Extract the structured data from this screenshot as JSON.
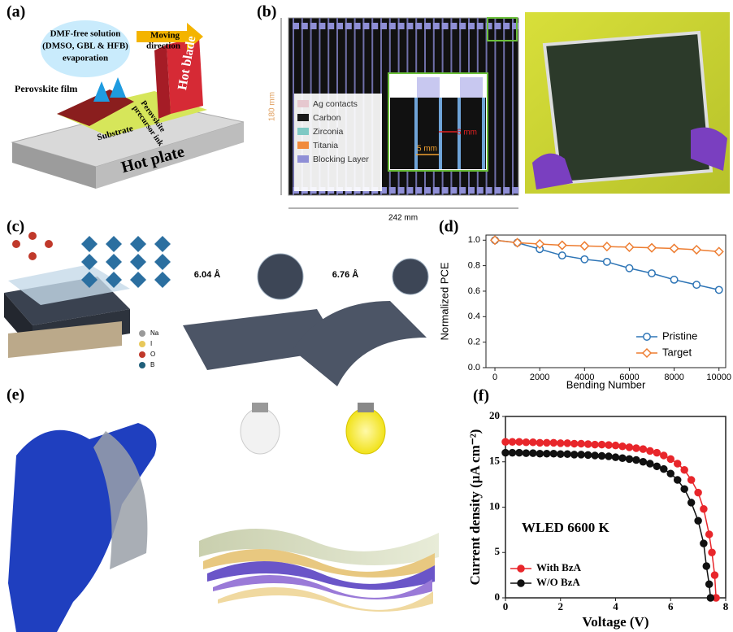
{
  "panels": {
    "a": {
      "label": "(a)",
      "solution": "DMF-free solution",
      "solvents": "(DMSO, GBL & HFB)",
      "evaporation": "evaporation",
      "moving": "Moving",
      "direction": "direction",
      "hot_blade": "Hot blade",
      "film": "Perovskite film",
      "ink_1": "Perovskite",
      "ink_2": "precursor ink",
      "substrate": "Substrate",
      "hot_plate": "Hot plate"
    },
    "b": {
      "label": "(b)",
      "height": "180 mm",
      "width": "242 mm",
      "legend": [
        "Ag contacts",
        "Carbon",
        "Zirconia",
        "Titania",
        "Blocking Layer"
      ],
      "legend_colors": [
        "#e6c8cf",
        "#1a1a1a",
        "#7fc9c4",
        "#f08a3c",
        "#8f8fd6"
      ],
      "gap": "6 mm",
      "stripe": "5 mm"
    },
    "c": {
      "label": "(c)",
      "dist_1": "6.04 Å",
      "dist_2": "6.76 Å",
      "elements": [
        "Na",
        "I",
        "O",
        "B"
      ],
      "element_colors": [
        "#9a9a9a",
        "#e8c85a",
        "#c0392b",
        "#1f5f7a"
      ]
    },
    "e": {
      "label": "(e)"
    }
  },
  "chart_data": [
    {
      "type": "line",
      "panel_label": "(d)",
      "xlabel": "Bending Number",
      "ylabel": "Normalized PCE",
      "x": [
        0,
        1000,
        2000,
        3000,
        4000,
        5000,
        6000,
        7000,
        8000,
        9000,
        10000
      ],
      "xlim": [
        -400,
        10300
      ],
      "xticks": [
        0,
        2000,
        4000,
        6000,
        8000,
        10000
      ],
      "ylim": [
        0,
        1.04
      ],
      "yticks": [
        {
          "value": 0,
          "label": "0.0"
        },
        0.2,
        0.4,
        0.6,
        0.8,
        {
          "value": 1,
          "label": "1.0"
        }
      ],
      "legend": "lower right",
      "filled_markers": false,
      "series": [
        {
          "name": "Pristine",
          "color": "#2e75b6",
          "marker": "circle",
          "values": [
            1.0,
            0.98,
            0.93,
            0.88,
            0.85,
            0.83,
            0.78,
            0.74,
            0.69,
            0.65,
            0.61
          ]
        },
        {
          "name": "Target",
          "color": "#ed7d31",
          "marker": "diamond",
          "values": [
            1.0,
            0.98,
            0.97,
            0.96,
            0.955,
            0.95,
            0.945,
            0.94,
            0.935,
            0.925,
            0.91
          ]
        }
      ]
    },
    {
      "type": "line",
      "panel_label": "(f)",
      "xlabel": "Voltage (V)",
      "ylabel": "Current density (μA cm⁻²)",
      "annotation": "WLED 6600 K",
      "xlim": [
        0,
        8
      ],
      "xticks": [
        0,
        2,
        4,
        6,
        8
      ],
      "ylim": [
        0,
        20
      ],
      "yticks": [
        0,
        5,
        10,
        15,
        20
      ],
      "legend": "lower left",
      "filled_markers": true,
      "series": [
        {
          "name": "With BzA",
          "color": "#e8262b",
          "marker": "circle",
          "x": [
            0,
            0.25,
            0.5,
            0.75,
            1,
            1.25,
            1.5,
            1.75,
            2,
            2.25,
            2.5,
            2.75,
            3,
            3.25,
            3.5,
            3.75,
            4,
            4.25,
            4.5,
            4.75,
            5,
            5.25,
            5.5,
            5.75,
            6,
            6.25,
            6.5,
            6.75,
            7,
            7.2,
            7.4,
            7.5,
            7.6,
            7.65
          ],
          "values": [
            17.2,
            17.2,
            17.2,
            17.15,
            17.15,
            17.1,
            17.1,
            17.1,
            17.05,
            17.05,
            17.0,
            17.0,
            16.95,
            16.9,
            16.9,
            16.85,
            16.8,
            16.7,
            16.6,
            16.5,
            16.4,
            16.2,
            16.0,
            15.7,
            15.3,
            14.8,
            14.1,
            13.0,
            11.6,
            9.8,
            7.0,
            5.0,
            2.5,
            0
          ]
        },
        {
          "name": "W/O BzA",
          "color": "#111111",
          "marker": "circle",
          "x": [
            0,
            0.25,
            0.5,
            0.75,
            1,
            1.25,
            1.5,
            1.75,
            2,
            2.25,
            2.5,
            2.75,
            3,
            3.25,
            3.5,
            3.75,
            4,
            4.25,
            4.5,
            4.75,
            5,
            5.25,
            5.5,
            5.75,
            6,
            6.25,
            6.5,
            6.75,
            7,
            7.2,
            7.3,
            7.4,
            7.45
          ],
          "values": [
            16.0,
            16.0,
            16.0,
            15.95,
            15.95,
            15.9,
            15.9,
            15.9,
            15.85,
            15.85,
            15.8,
            15.8,
            15.75,
            15.7,
            15.65,
            15.6,
            15.5,
            15.4,
            15.3,
            15.2,
            15.0,
            14.8,
            14.5,
            14.2,
            13.7,
            13.0,
            12.0,
            10.5,
            8.5,
            6.0,
            3.5,
            1.5,
            0
          ]
        }
      ]
    }
  ]
}
